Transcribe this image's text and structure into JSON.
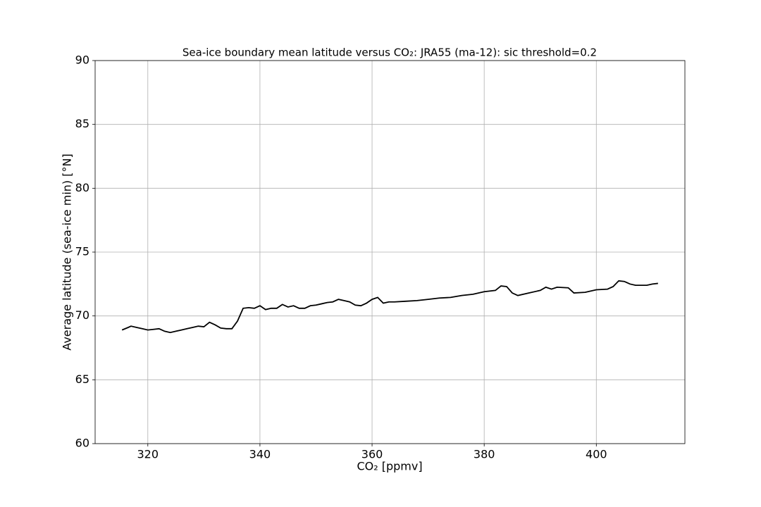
{
  "chart_data": {
    "type": "line",
    "title": "Sea-ice boundary mean latitude versus CO₂: JRA55 (ma-12): sic threshold=0.2",
    "x_label": "CO₂ [ppmv]",
    "y_label": "Average latitude (sea-ice min) [°N]",
    "x": [
      315.4,
      316.5,
      317,
      318,
      319,
      320,
      321,
      322,
      323,
      324,
      325,
      326,
      327,
      328,
      329,
      330,
      331,
      332,
      333,
      334,
      335,
      336,
      337,
      338,
      339,
      340,
      341,
      342,
      343,
      344,
      345,
      346,
      347,
      348,
      349,
      350,
      351,
      352,
      353,
      354,
      355,
      356,
      357,
      358,
      359,
      360,
      361,
      362,
      363,
      364,
      366,
      368,
      370,
      372,
      374,
      376,
      378,
      380,
      382,
      383,
      384,
      385,
      386,
      388,
      390,
      391,
      392,
      393,
      395,
      396,
      398,
      400,
      402,
      403,
      404,
      405,
      406,
      407,
      408,
      409,
      410,
      411
    ],
    "values": [
      68.9,
      69.1,
      69.2,
      69.1,
      69.0,
      68.9,
      68.95,
      69.0,
      68.8,
      68.7,
      68.8,
      68.9,
      69.0,
      69.1,
      69.2,
      69.15,
      69.5,
      69.3,
      69.05,
      69.0,
      69.0,
      69.6,
      70.6,
      70.65,
      70.6,
      70.8,
      70.5,
      70.6,
      70.6,
      70.9,
      70.7,
      70.8,
      70.6,
      70.6,
      70.8,
      70.85,
      70.95,
      71.05,
      71.1,
      71.3,
      71.2,
      71.1,
      70.85,
      70.8,
      71.0,
      71.3,
      71.45,
      71.0,
      71.1,
      71.1,
      71.15,
      71.2,
      71.3,
      71.4,
      71.45,
      71.6,
      71.7,
      71.9,
      72.0,
      72.35,
      72.3,
      71.8,
      71.6,
      71.8,
      72.0,
      72.25,
      72.1,
      72.25,
      72.2,
      71.8,
      71.85,
      72.05,
      72.1,
      72.3,
      72.75,
      72.7,
      72.5,
      72.4,
      72.4,
      72.4,
      72.5,
      72.55
    ],
    "color": "#000000",
    "xlim": [
      310.6,
      415.8
    ],
    "xticks": [
      320,
      340,
      360,
      380,
      400
    ],
    "ylim": [
      60,
      90
    ],
    "yticks": [
      60,
      65,
      70,
      75,
      80,
      85,
      90
    ],
    "grid": true
  }
}
